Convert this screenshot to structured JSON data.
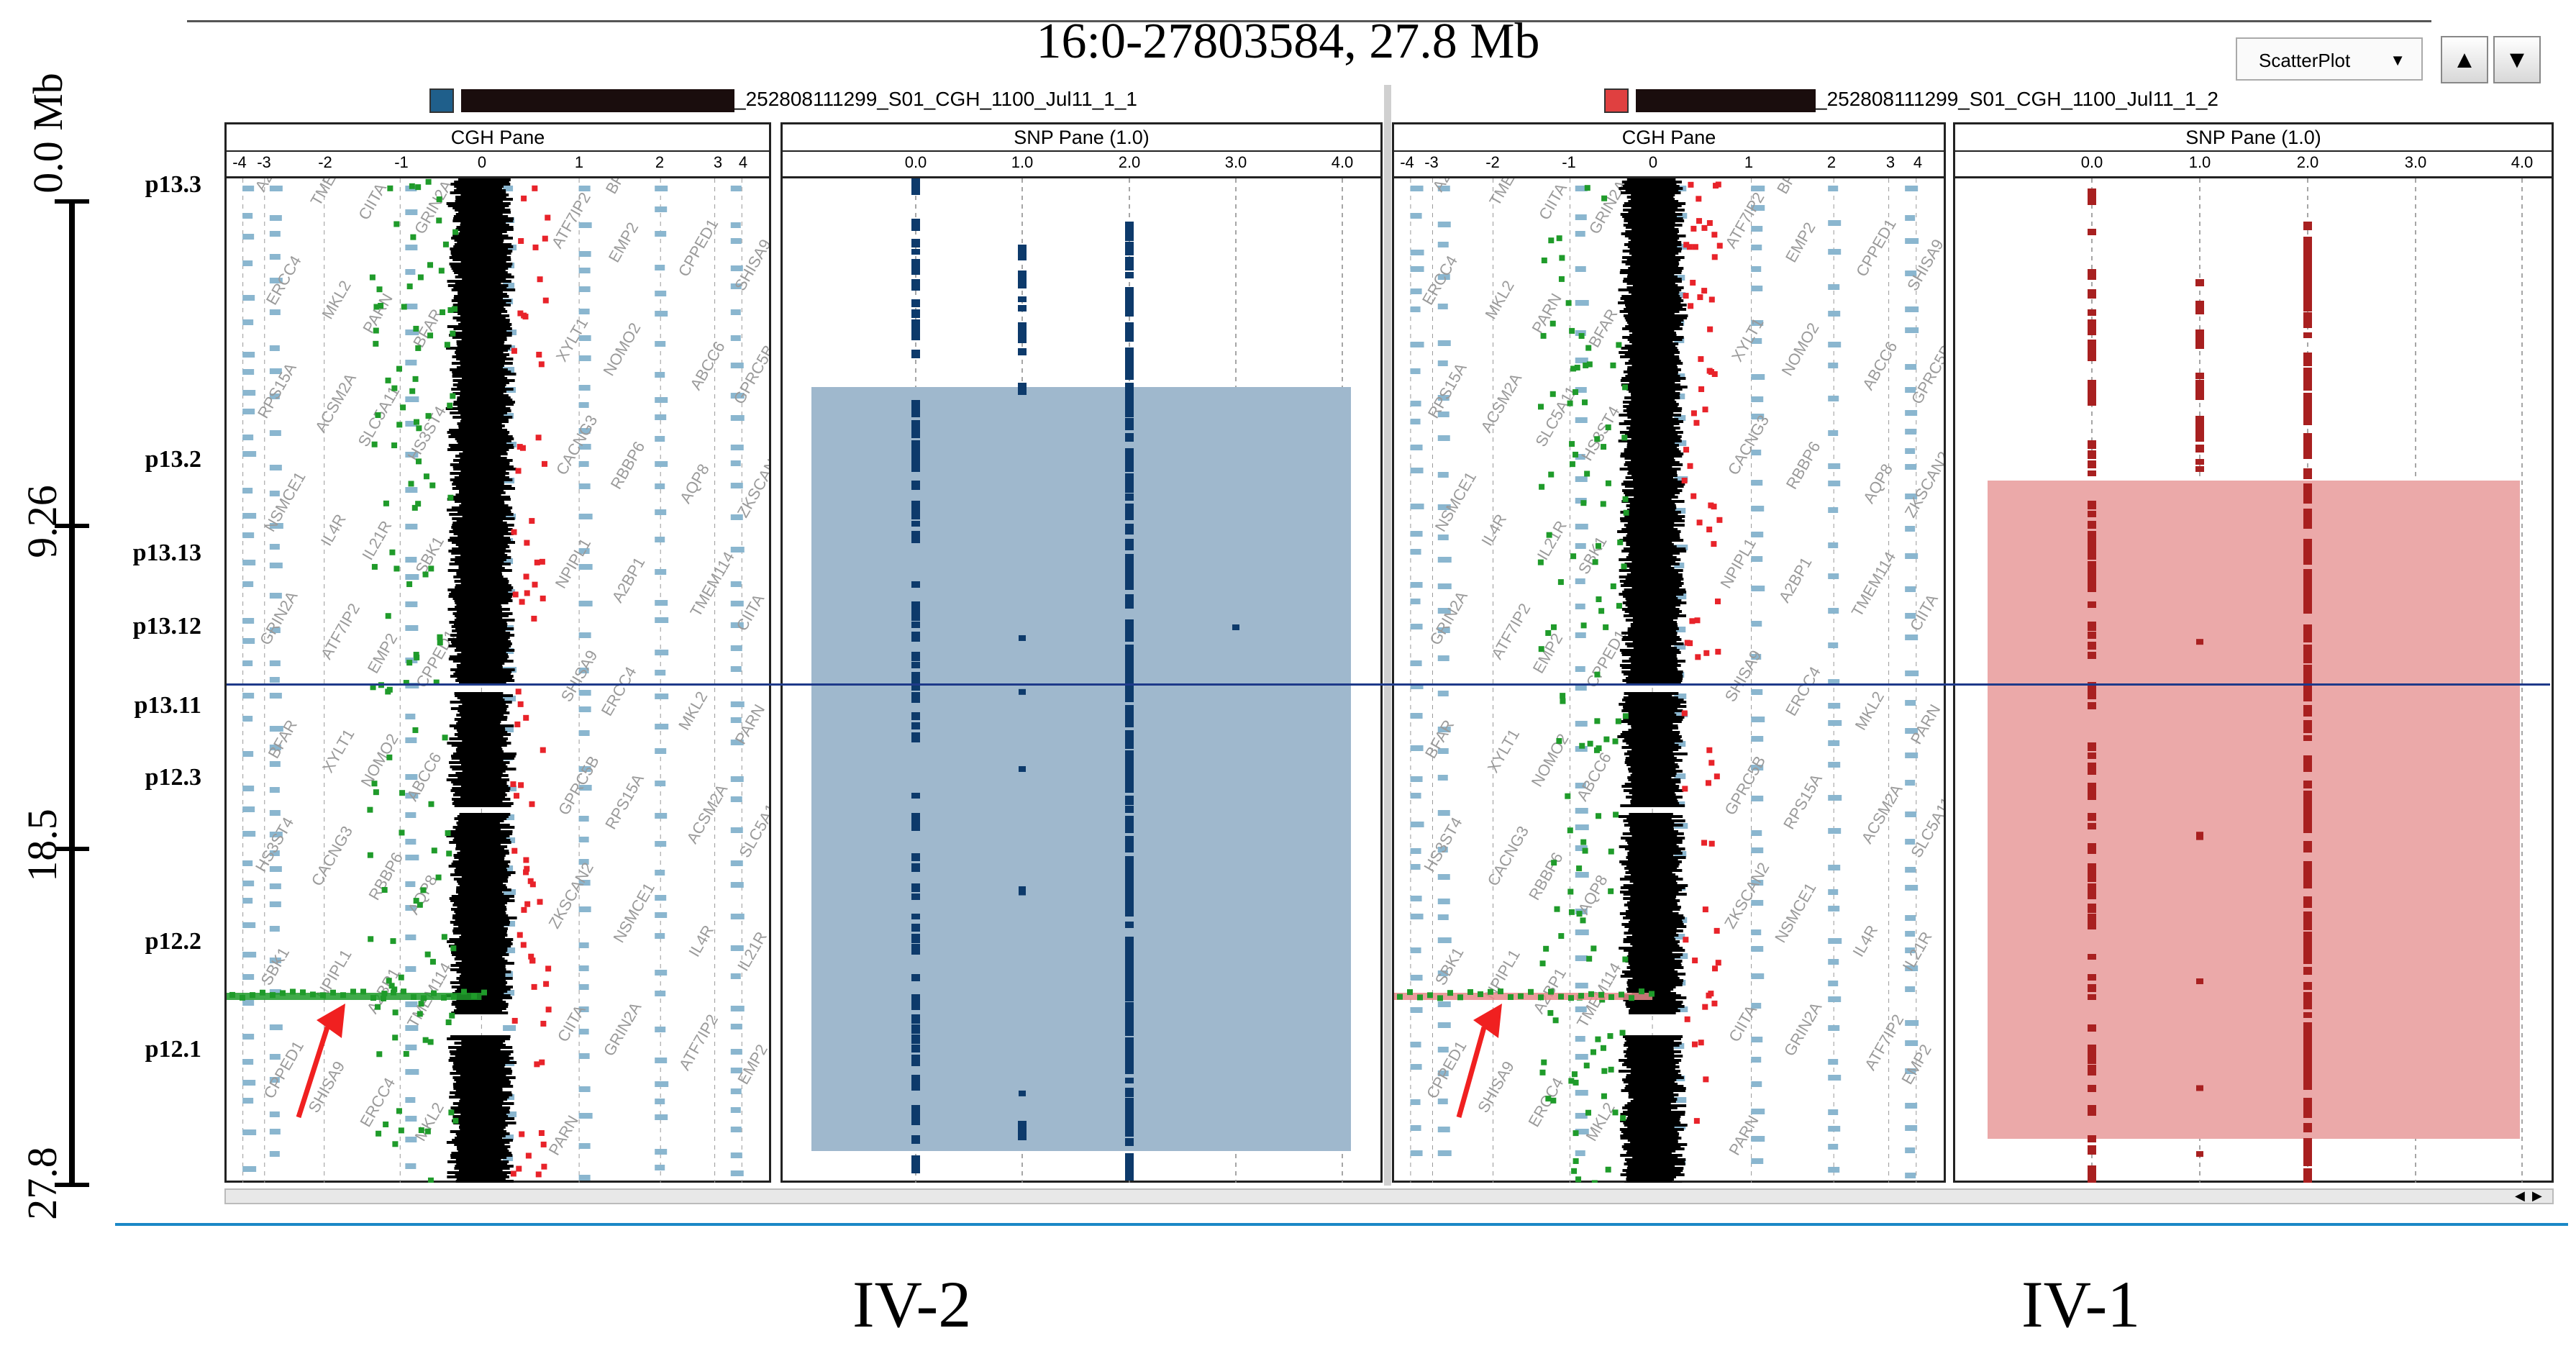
{
  "header": {
    "title": "16:0-27803584,  27.8 Mb",
    "view_select": "ScatterPlot",
    "up_button": "▲",
    "down_button": "▼"
  },
  "ruler": {
    "labels": [
      "0.0 Mb",
      "9.26",
      "18.5",
      "27.8"
    ]
  },
  "cytobands": [
    "p13.3",
    "p13.2",
    "p13.13",
    "p13.12",
    "p13.11",
    "p12.3",
    "p12.2",
    "p12.1"
  ],
  "panels": [
    {
      "sample_suffix": "_252808111299_S01_CGH_1100_Jul11_1_1",
      "swatch_color": "#1f5f8b",
      "cgh_title": "CGH Pane",
      "snp_title": "SNP Pane (1.0)",
      "subject_label": "IV-2",
      "region_color": "#9fb8cd",
      "snp_dot_color": "#0d3a6b"
    },
    {
      "sample_suffix": "_252808111299_S01_CGH_1100_Jul11_1_2",
      "swatch_color": "#e04040",
      "cgh_title": "CGH Pane",
      "snp_title": "SNP Pane (1.0)",
      "subject_label": "IV-1",
      "region_color": "#eba9a9",
      "snp_dot_color": "#a82020"
    }
  ],
  "cgh_ticks": [
    "-4",
    "-3",
    "-2",
    "-1",
    "0",
    "1",
    "2",
    "3",
    "4"
  ],
  "snp_ticks": [
    "0.0",
    "1.0",
    "2.0",
    "3.0",
    "4.0"
  ],
  "gene_labels": [
    "A2BP1",
    "TMEM114",
    "CIITA",
    "GRIN2A",
    "ATF7IP2",
    "EMP2",
    "CPPED1",
    "SHISA9",
    "ERCC4",
    "MKL2",
    "PARN",
    "BFAR",
    "XYLT1",
    "NOMO2",
    "ABCC6",
    "GPRC5B",
    "RPS15A",
    "ACSM2A",
    "SLC5A11",
    "HS3ST4",
    "CACNG3",
    "RBBP6",
    "AQP8",
    "ZKSCAN2",
    "NSMCE1",
    "IL4R",
    "IL21R",
    "SBK1",
    "NPIPL1"
  ],
  "colors": {
    "gain": "#e8232a",
    "loss": "#1f9b2a",
    "normal": "#000000",
    "marker_line": "#1e3a8a"
  }
}
